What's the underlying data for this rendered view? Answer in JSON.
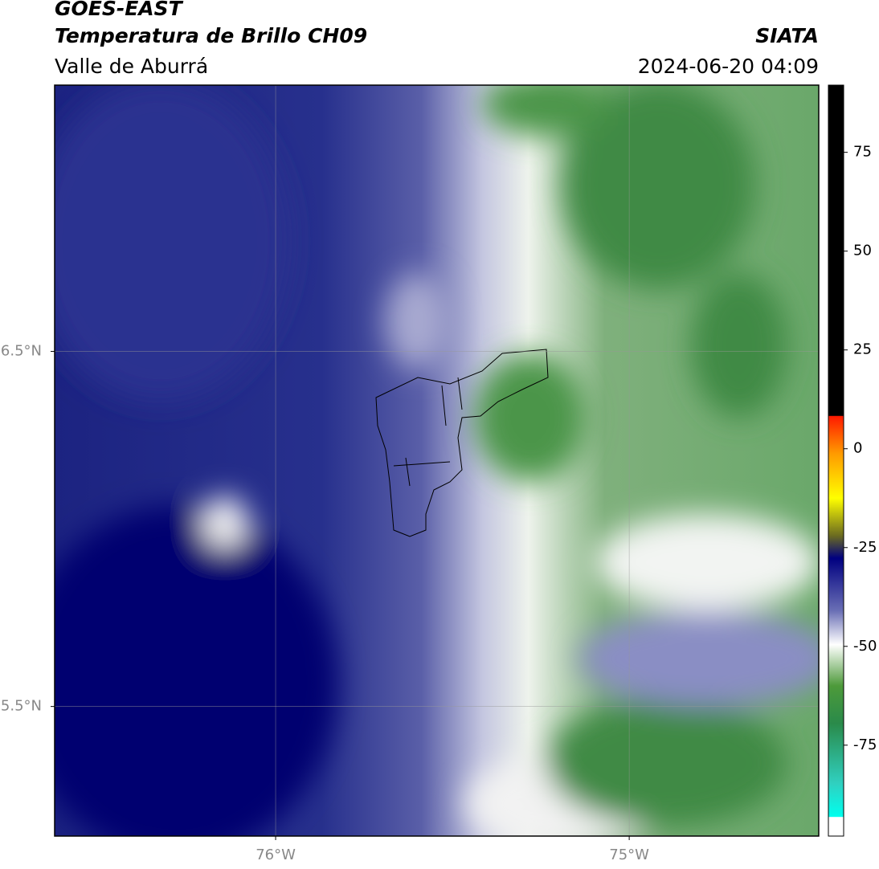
{
  "header": {
    "source": "GOES-EAST",
    "title": "Temperatura de Brillo CH09",
    "region": "Valle de Aburrá",
    "agency": "SIATA",
    "datetime": "2024-06-20 04:09"
  },
  "map": {
    "xlim": [
      -76.625,
      -74.464
    ],
    "ylim": [
      5.135,
      7.25
    ],
    "xticks": [
      {
        "value": -76,
        "label": "76°W"
      },
      {
        "value": -75,
        "label": "75°W"
      }
    ],
    "yticks": [
      {
        "value": 6.5,
        "label": "6.5°N"
      },
      {
        "value": 5.5,
        "label": "5.5°N"
      }
    ],
    "grid": true
  },
  "colorbar": {
    "lim": [
      92,
      -98
    ],
    "ticks": [
      75,
      50,
      25,
      0,
      -25,
      -50,
      -75
    ]
  }
}
